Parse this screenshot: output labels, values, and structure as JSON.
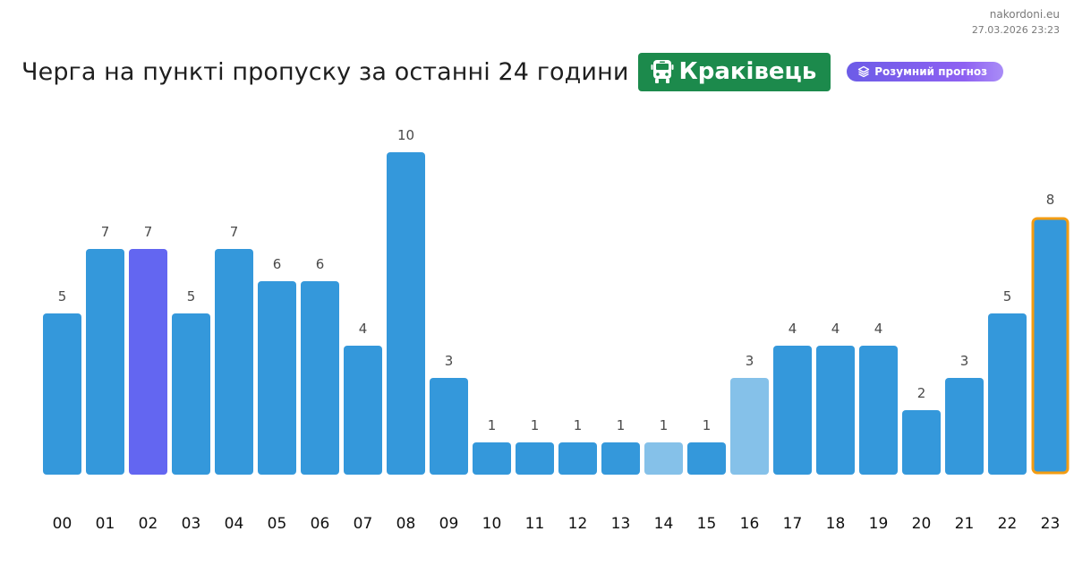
{
  "meta": {
    "site": "nakordoni.eu",
    "datetime": "27.03.2026 23:23"
  },
  "header": {
    "title": "Черга на пункті пропуску за останні 24 години",
    "place": "Краківець",
    "place_icon": "bus-icon",
    "smart_forecast_label": "Розумний прогноз",
    "smart_forecast_icon": "layers-icon"
  },
  "colors": {
    "bar_default": "#3498db",
    "bar_light": "#85c1e9",
    "bar_purple": "#6366f1",
    "bar_current_border": "#f39c12",
    "place_badge": "#1c8a4c"
  },
  "chart_data": {
    "type": "bar",
    "title": "Черга на пункті пропуску за останні 24 години",
    "xlabel": "",
    "ylabel": "",
    "categories": [
      "00",
      "01",
      "02",
      "03",
      "04",
      "05",
      "06",
      "07",
      "08",
      "09",
      "10",
      "11",
      "12",
      "13",
      "14",
      "15",
      "16",
      "17",
      "18",
      "19",
      "20",
      "21",
      "22",
      "23"
    ],
    "values": [
      5,
      7,
      7,
      5,
      7,
      6,
      6,
      4,
      10,
      3,
      1,
      1,
      1,
      1,
      1,
      1,
      3,
      4,
      4,
      4,
      2,
      3,
      5,
      8
    ],
    "ylim": [
      0,
      10
    ],
    "grid": false,
    "legend": "none",
    "bar_styles": {
      "02": "purple",
      "14": "light",
      "16": "light",
      "23": "current"
    }
  }
}
